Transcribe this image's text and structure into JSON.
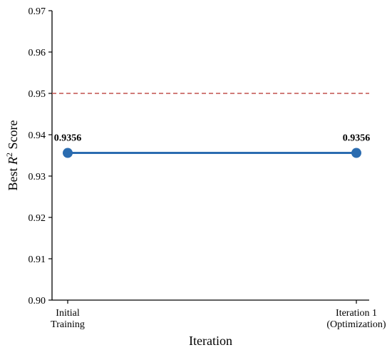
{
  "chart_data": {
    "type": "line",
    "title": "",
    "xlabel": "Iteration",
    "ylabel_prefix": "Best ",
    "ylabel_var": "R",
    "ylabel_sup": "2",
    "ylabel_suffix": " Score",
    "categories": [
      [
        "Initial",
        "Training"
      ],
      [
        "Iteration 1",
        "(Optimization)"
      ]
    ],
    "values": [
      0.9356,
      0.9356
    ],
    "data_labels": [
      "0.9356",
      "0.9356"
    ],
    "ylim": [
      0.9,
      0.97
    ],
    "yticks": [
      "0.90",
      "0.91",
      "0.92",
      "0.93",
      "0.94",
      "0.95",
      "0.96",
      "0.97"
    ],
    "reference_line": 0.95,
    "grid": false,
    "legend": "none",
    "colors": {
      "series": "#2b6cb0",
      "reference": "#c0504d",
      "axis": "#000000"
    }
  }
}
